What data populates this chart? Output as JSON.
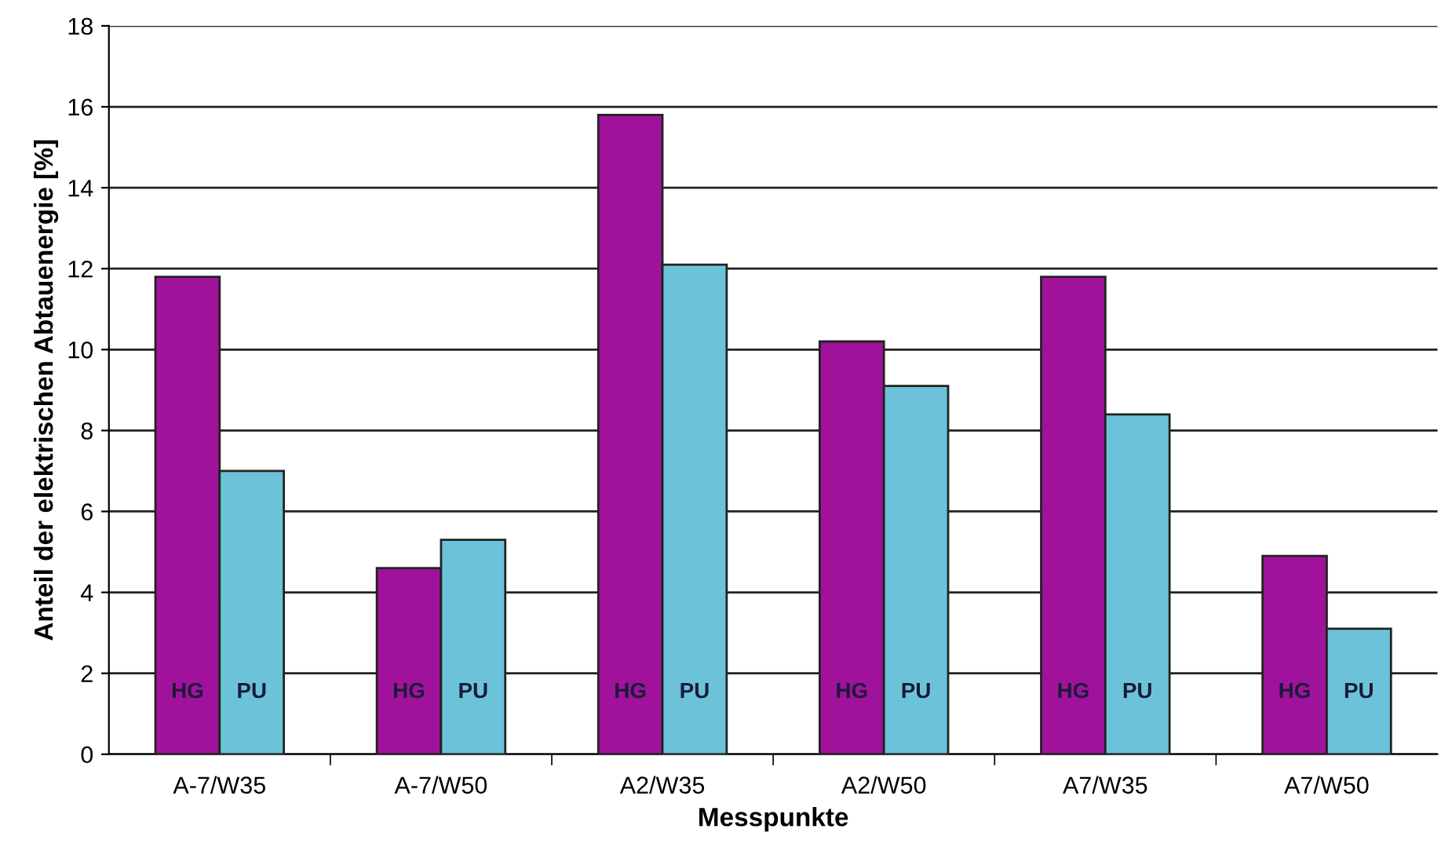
{
  "chart_data": {
    "type": "bar",
    "xlabel": "Messpunkte",
    "ylabel": "Anteil der elektrischen Abtauenergie [%]",
    "categories": [
      "A-7/W35",
      "A-7/W50",
      "A2/W35",
      "A2/W50",
      "A7/W35",
      "A7/W50"
    ],
    "series": [
      {
        "name": "HG",
        "color": "#a0129c",
        "values": [
          11.8,
          4.6,
          15.8,
          10.2,
          11.8,
          4.9
        ]
      },
      {
        "name": "PU",
        "color": "#6cc3d9",
        "values": [
          7.0,
          5.3,
          12.1,
          9.1,
          8.4,
          3.1
        ]
      }
    ],
    "ylim": [
      0,
      18
    ],
    "yticks": [
      0,
      2,
      4,
      6,
      8,
      10,
      12,
      14,
      16,
      18
    ],
    "grid": "y",
    "legend": false
  }
}
